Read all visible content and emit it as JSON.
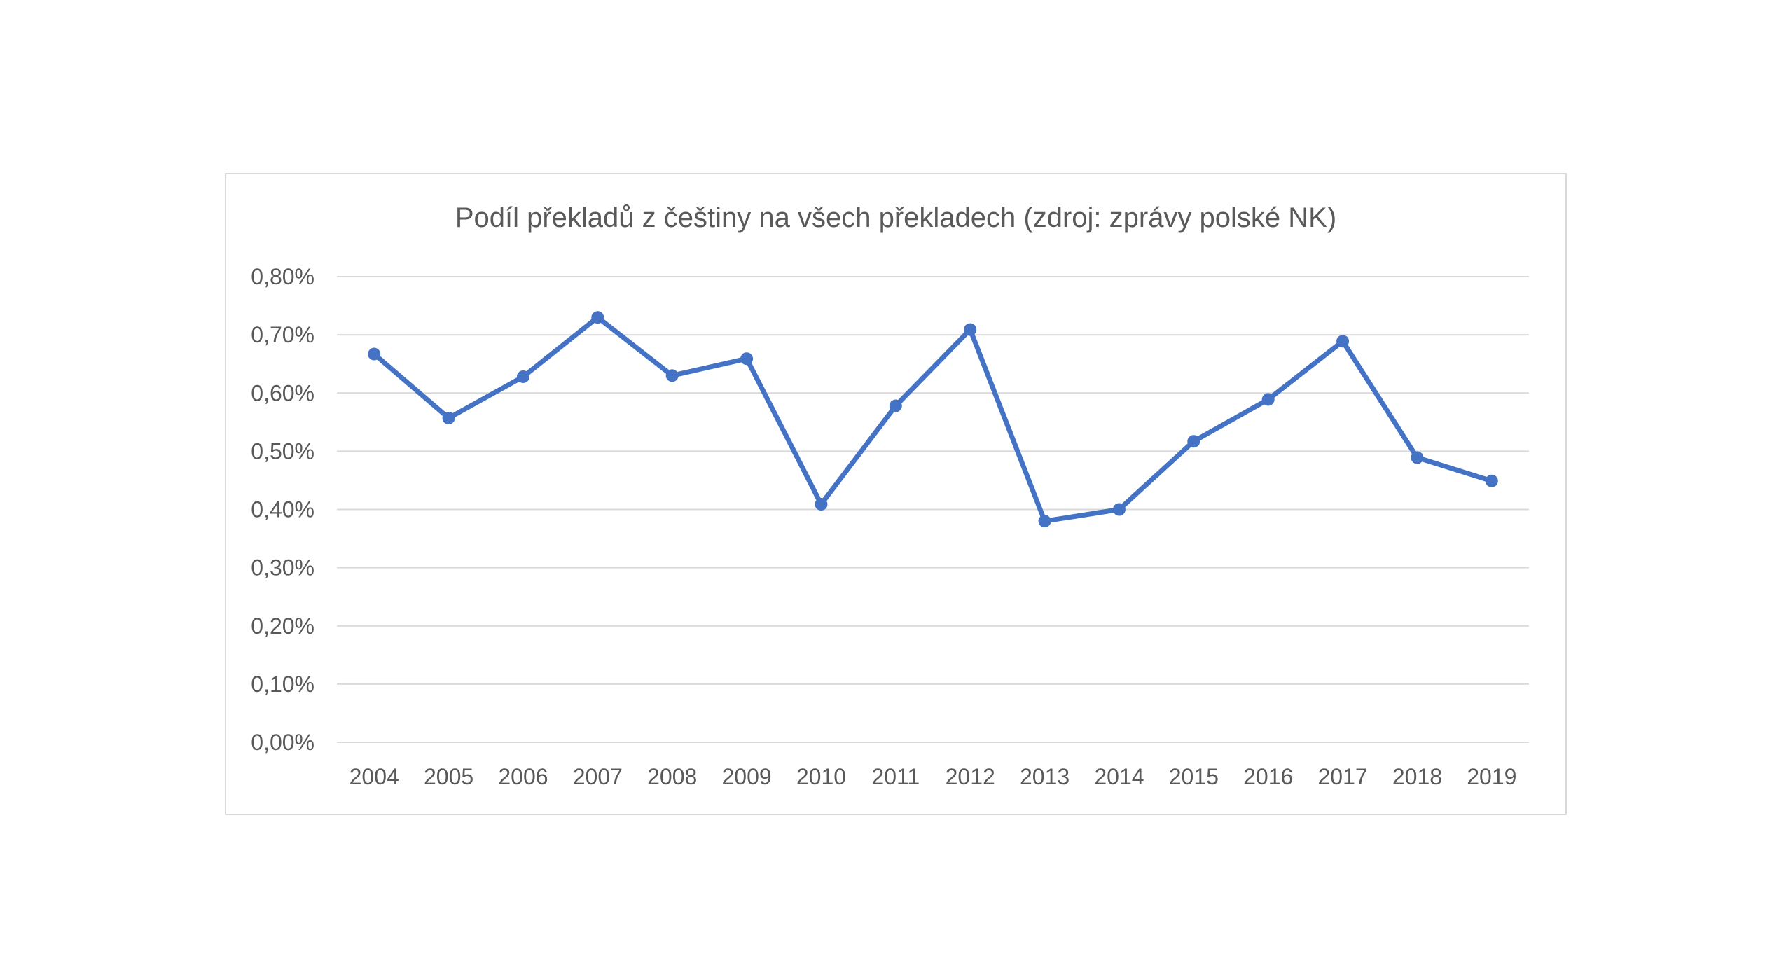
{
  "chart_data": {
    "type": "line",
    "title": "Podíl překladů z češtiny na všech překladech (zdroj: zprávy polské NK)",
    "xlabel": "",
    "ylabel": "",
    "categories": [
      "2004",
      "2005",
      "2006",
      "2007",
      "2008",
      "2009",
      "2010",
      "2011",
      "2012",
      "2013",
      "2014",
      "2015",
      "2016",
      "2017",
      "2018",
      "2019"
    ],
    "series": [
      {
        "values": [
          0.667,
          0.557,
          0.628,
          0.73,
          0.63,
          0.659,
          0.409,
          0.578,
          0.709,
          0.38,
          0.4,
          0.517,
          0.589,
          0.689,
          0.489,
          0.449
        ],
        "color": "#4472c4"
      }
    ],
    "ylim": [
      0,
      0.8
    ],
    "yticks": [
      "0,00%",
      "0,10%",
      "0,20%",
      "0,30%",
      "0,40%",
      "0,50%",
      "0,60%",
      "0,70%",
      "0,80%"
    ],
    "grid": true,
    "legend": "none",
    "colors": {
      "line": "#4472c4",
      "grid": "#d9d9d9",
      "text": "#595959"
    }
  }
}
